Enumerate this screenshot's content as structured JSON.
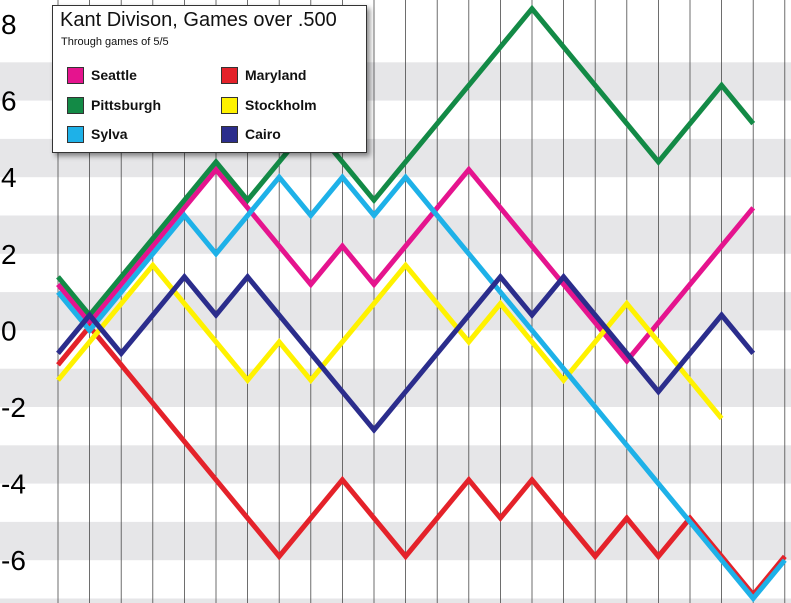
{
  "chart_data": {
    "type": "line",
    "title": "Kant Divison, Games over .500",
    "subtitle": "Through games of 5/5",
    "xlabel": "",
    "ylabel": "",
    "ylim": [
      -7,
      8.5
    ],
    "yticks": [
      8,
      6,
      4,
      2,
      0,
      -2,
      -4,
      -6
    ],
    "ytick_labels": [
      "8",
      "6",
      "4",
      "2",
      "0",
      "-2",
      "-4",
      "-6"
    ],
    "grid": "vertical lines with alternating horizontal bands",
    "legend_placement": "top-left",
    "x": [
      0,
      1,
      2,
      3,
      4,
      5,
      6,
      7,
      8,
      9,
      10,
      11,
      12,
      13,
      14,
      15,
      16,
      17,
      18,
      19,
      20,
      21,
      22,
      23
    ],
    "series": [
      {
        "name": "Seattle",
        "color": "#e5148e",
        "values": [
          1.2,
          0.2,
          1.2,
          2.2,
          3.2,
          4.2,
          3.2,
          2.2,
          1.2,
          2.2,
          1.2,
          2.2,
          3.2,
          4.2,
          3.2,
          2.2,
          1.2,
          0.2,
          -0.8,
          0.2,
          1.2,
          2.2,
          3.2,
          null
        ]
      },
      {
        "name": "Maryland",
        "color": "#e4222a",
        "values": [
          -0.9,
          0.1,
          -0.9,
          -1.9,
          -2.9,
          -3.9,
          -4.9,
          -5.9,
          -4.9,
          -3.9,
          -4.9,
          -5.9,
          -4.9,
          -3.9,
          -4.9,
          -3.9,
          -4.9,
          -5.9,
          -4.9,
          -5.9,
          -4.9,
          -5.9,
          -6.9,
          -5.9
        ]
      },
      {
        "name": "Pittsburgh",
        "color": "#138a46",
        "values": [
          1.4,
          0.4,
          1.4,
          2.4,
          3.4,
          4.4,
          3.4,
          4.4,
          5.4,
          4.4,
          3.4,
          4.4,
          5.4,
          6.4,
          7.4,
          8.4,
          7.4,
          6.4,
          5.4,
          4.4,
          5.4,
          6.4,
          5.4,
          null
        ]
      },
      {
        "name": "Stockholm",
        "color": "#fff200",
        "values": [
          -1.3,
          -0.3,
          0.7,
          1.7,
          0.7,
          -0.3,
          -1.3,
          -0.3,
          -1.3,
          -0.3,
          0.7,
          1.7,
          0.7,
          -0.3,
          0.7,
          -0.3,
          -1.3,
          -0.3,
          0.7,
          -0.3,
          -1.3,
          -2.3,
          null,
          null
        ]
      },
      {
        "name": "Sylva",
        "color": "#1eb1e8",
        "values": [
          1.0,
          0.0,
          1.0,
          2.0,
          3.0,
          2.0,
          3.0,
          4.0,
          3.0,
          4.0,
          3.0,
          4.0,
          3.0,
          2.0,
          1.0,
          0.0,
          -1.0,
          -2.0,
          -3.0,
          -4.0,
          -5.0,
          -6.0,
          -7.0,
          -6.0
        ]
      },
      {
        "name": "Cairo",
        "color": "#2b2d8c",
        "values": [
          -0.6,
          0.4,
          -0.6,
          0.4,
          1.4,
          0.4,
          1.4,
          0.4,
          -0.6,
          -1.6,
          -2.6,
          -1.6,
          -0.6,
          0.4,
          1.4,
          0.4,
          1.4,
          0.4,
          -0.6,
          -1.6,
          -0.6,
          0.4,
          -0.6,
          null
        ]
      }
    ]
  }
}
